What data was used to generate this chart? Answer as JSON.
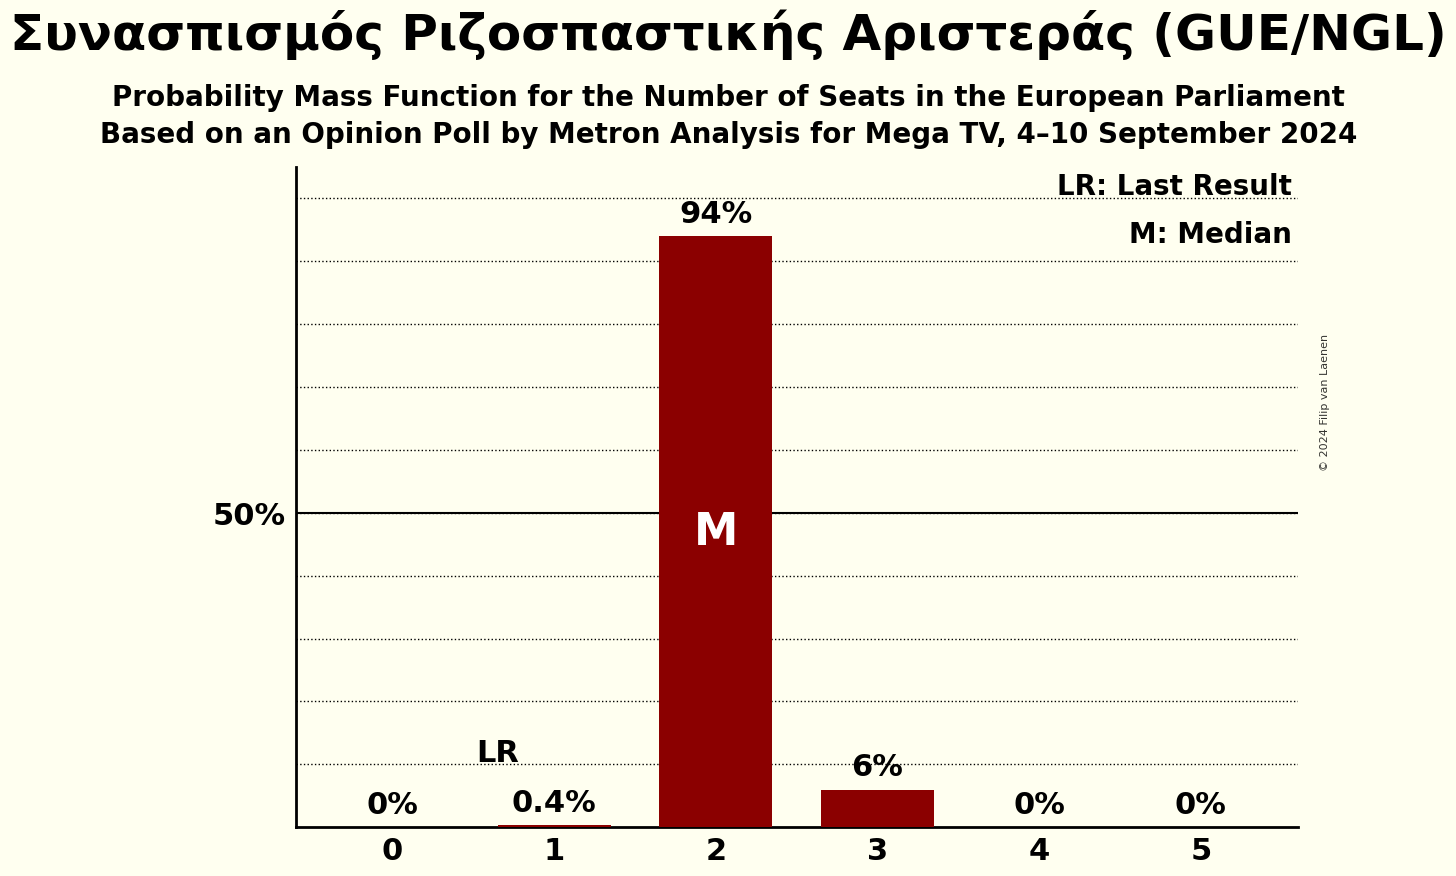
{
  "title": "Συνασπισμός Ριζοσπαστικής Αριστεράς (GUE/NGL)",
  "subtitle1": "Probability Mass Function for the Number of Seats in the European Parliament",
  "subtitle2": "Based on an Opinion Poll by Metron Analysis for Mega TV, 4–10 September 2024",
  "copyright": "© 2024 Filip van Laenen",
  "seats": [
    0,
    1,
    2,
    3,
    4,
    5
  ],
  "probabilities": [
    0.0,
    0.004,
    0.94,
    0.06,
    0.0,
    0.0
  ],
  "bar_color": "#8b0000",
  "background_color": "#fffff0",
  "median_seat": 2,
  "last_result_seat": 1,
  "ylabel_50": "50%",
  "lr_label": "LR",
  "m_label": "M",
  "bar_labels": [
    "0%",
    "0.4%",
    "94%",
    "6%",
    "0%",
    "0%"
  ],
  "title_fontsize": 36,
  "subtitle_fontsize": 20,
  "label_fontsize": 22,
  "tick_fontsize": 22,
  "legend_fontsize": 20,
  "ylim": [
    0,
    1.05
  ],
  "ytick_positions": [
    0.1,
    0.2,
    0.3,
    0.4,
    0.5,
    0.6,
    0.7,
    0.8,
    0.9,
    1.0
  ]
}
